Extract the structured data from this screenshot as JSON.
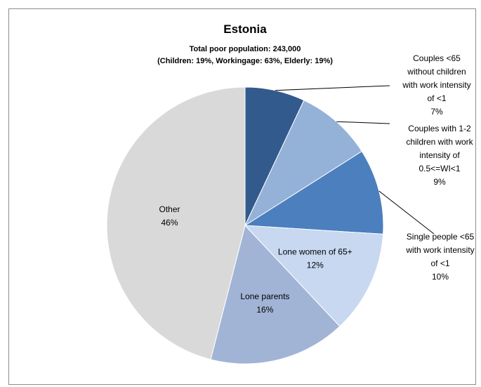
{
  "chart_data": {
    "type": "pie",
    "title": "Estonia",
    "subtitle_lines": [
      "Total poor population: 243,000",
      "(Children: 19%, Workingage: 63%, Elderly: 19%)"
    ],
    "slices": [
      {
        "label_lines": [
          "Couples <65",
          "without children",
          "with work intensity",
          "of <1"
        ],
        "value_label": "7%",
        "value": 7,
        "color": "#325a8c",
        "label_position": "outside"
      },
      {
        "label_lines": [
          "Couples with 1-2",
          "children with work",
          "intensity of",
          "0.5<=WI<1"
        ],
        "value_label": "9%",
        "value": 9,
        "color": "#94b2d8",
        "label_position": "outside"
      },
      {
        "label_lines": [
          "Single people <65",
          "with work intensity",
          "of <1"
        ],
        "value_label": "10%",
        "value": 10,
        "color": "#4c7fbe",
        "label_position": "outside"
      },
      {
        "label_lines": [
          "Lone women of 65+"
        ],
        "value_label": "12%",
        "value": 12,
        "color": "#c7d8f0",
        "label_position": "inside"
      },
      {
        "label_lines": [
          "Lone parents"
        ],
        "value_label": "16%",
        "value": 16,
        "color": "#a2b4d6",
        "label_position": "inside"
      },
      {
        "label_lines": [
          "Other"
        ],
        "value_label": "46%",
        "value": 46,
        "color": "#d9d9d9",
        "label_position": "inside"
      }
    ]
  }
}
